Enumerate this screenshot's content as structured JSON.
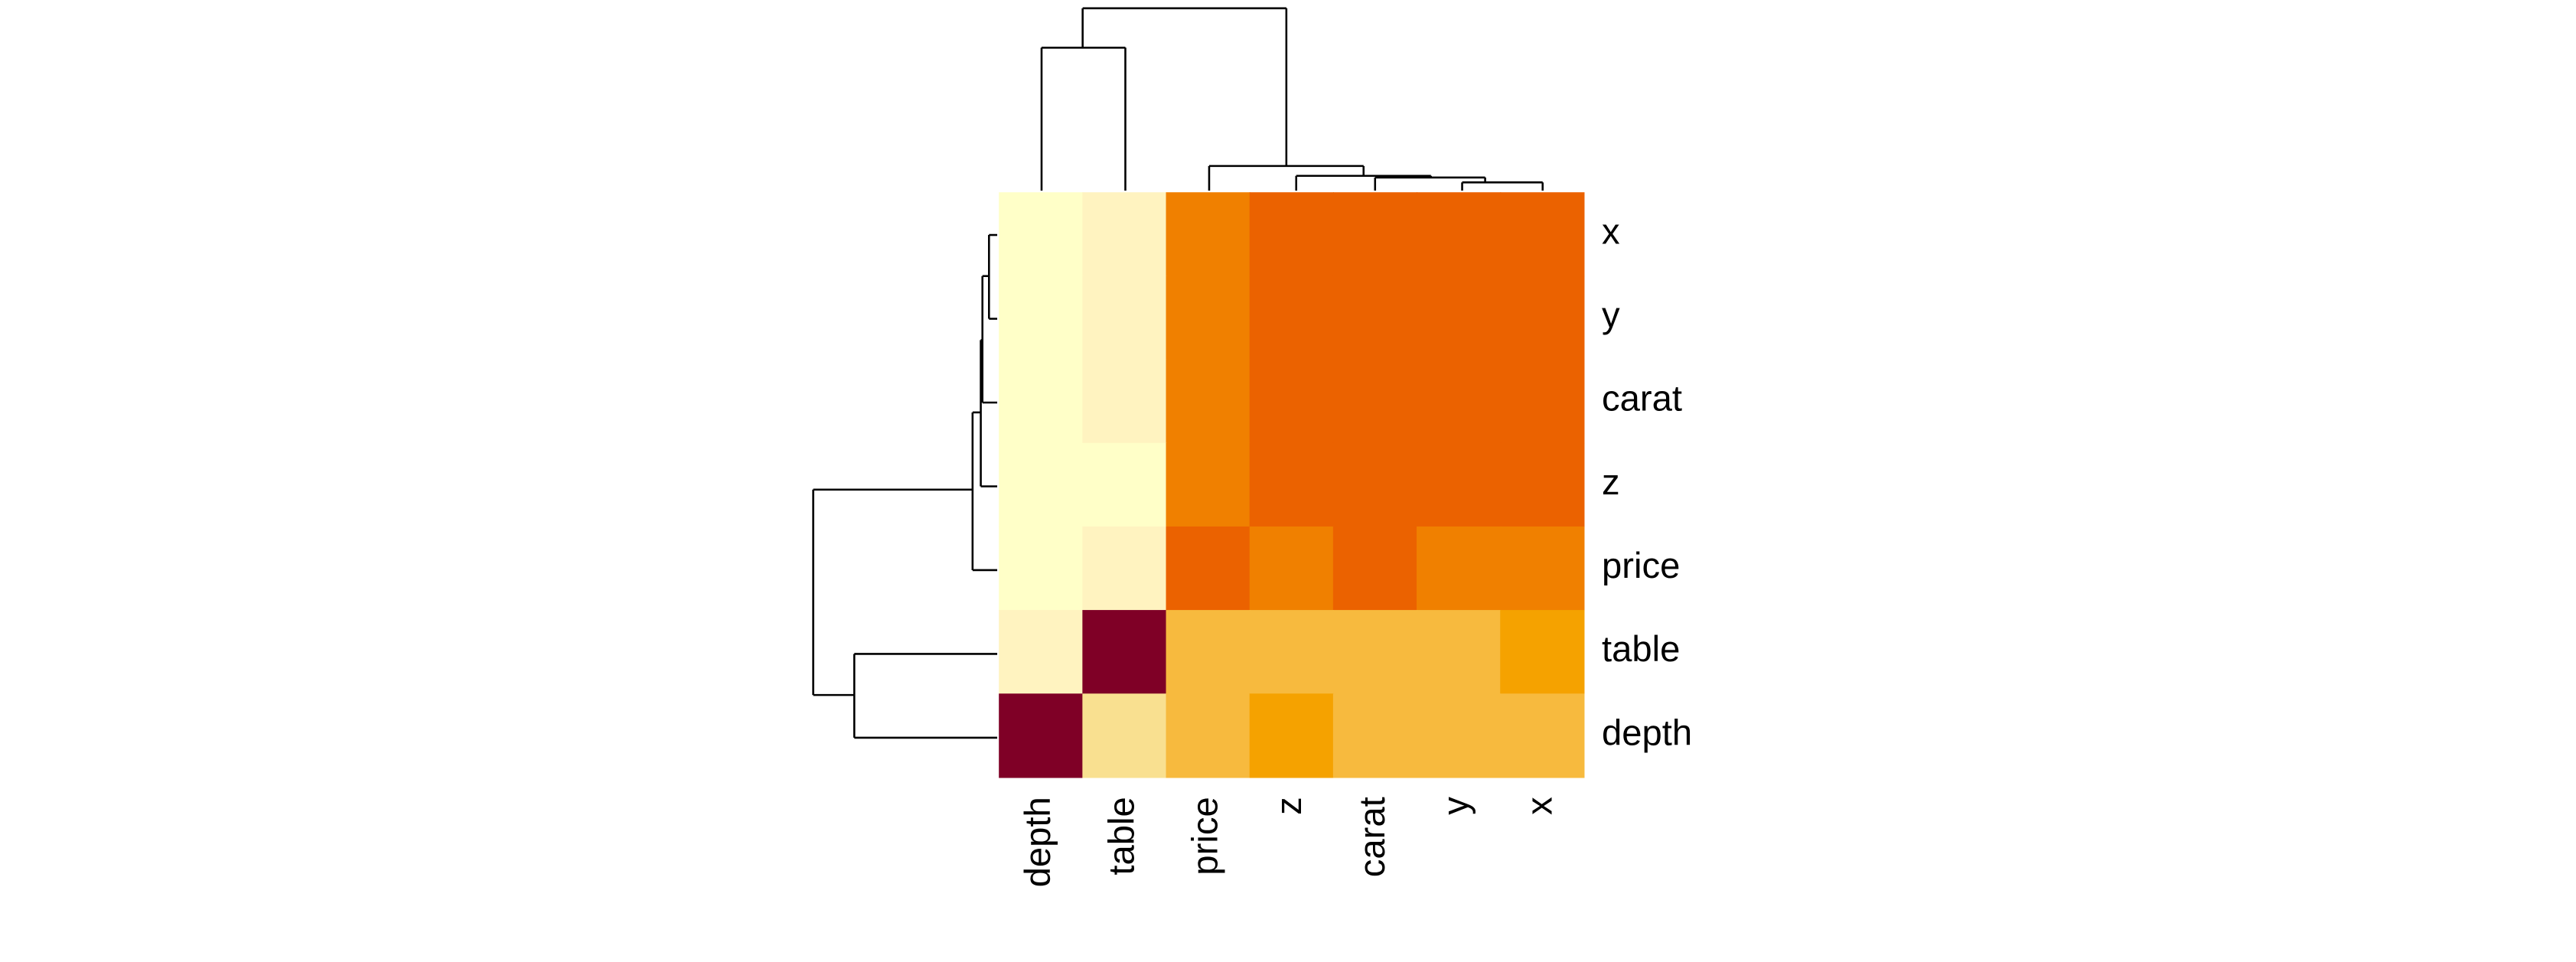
{
  "chart_data": {
    "type": "heatmap",
    "rows": [
      "x",
      "y",
      "carat",
      "z",
      "price",
      "table",
      "depth"
    ],
    "columns": [
      "depth",
      "table",
      "price",
      "z",
      "carat",
      "y",
      "x"
    ],
    "values": [
      [
        -0.03,
        0.2,
        0.88,
        0.97,
        0.98,
        0.97,
        1
      ],
      [
        -0.03,
        0.18,
        0.87,
        0.95,
        0.95,
        1,
        0.97
      ],
      [
        0.03,
        0.18,
        0.92,
        0.95,
        1,
        0.95,
        0.98
      ],
      [
        0.09,
        0.15,
        0.86,
        1,
        0.95,
        0.95,
        0.97
      ],
      [
        -0.01,
        0.13,
        1,
        0.86,
        0.92,
        0.87,
        0.88
      ],
      [
        -0.3,
        1,
        0.13,
        0.15,
        0.18,
        0.18,
        0.2
      ],
      [
        1,
        -0.3,
        -0.01,
        0.09,
        0.03,
        -0.03,
        -0.03
      ]
    ],
    "colors": [
      [
        "#FFFFC8",
        "#FFF3C0",
        "#F08000",
        "#EB6200",
        "#EB6200",
        "#EB6200",
        "#EB6200"
      ],
      [
        "#FFFFC8",
        "#FFF3C0",
        "#F08000",
        "#EB6200",
        "#EB6200",
        "#EB6200",
        "#EB6200"
      ],
      [
        "#FFFFC8",
        "#FFF3C0",
        "#F08000",
        "#EB6200",
        "#EB6200",
        "#EB6200",
        "#EB6200"
      ],
      [
        "#FFFFC8",
        "#FFFFC8",
        "#F08000",
        "#EB6200",
        "#EB6200",
        "#EB6200",
        "#EB6200"
      ],
      [
        "#FFFFC8",
        "#FFF3C0",
        "#EB6200",
        "#F08000",
        "#EB6200",
        "#F08000",
        "#F08000"
      ],
      [
        "#FFF3C0",
        "#7F0026",
        "#F7BA3E",
        "#F7BA3E",
        "#F7BA3E",
        "#F7BA3E",
        "#F5A200"
      ],
      [
        "#7F0026",
        "#F9E090",
        "#F7BA3E",
        "#F5A200",
        "#F7BA3E",
        "#F7BA3E",
        "#F7BA3E"
      ]
    ]
  }
}
